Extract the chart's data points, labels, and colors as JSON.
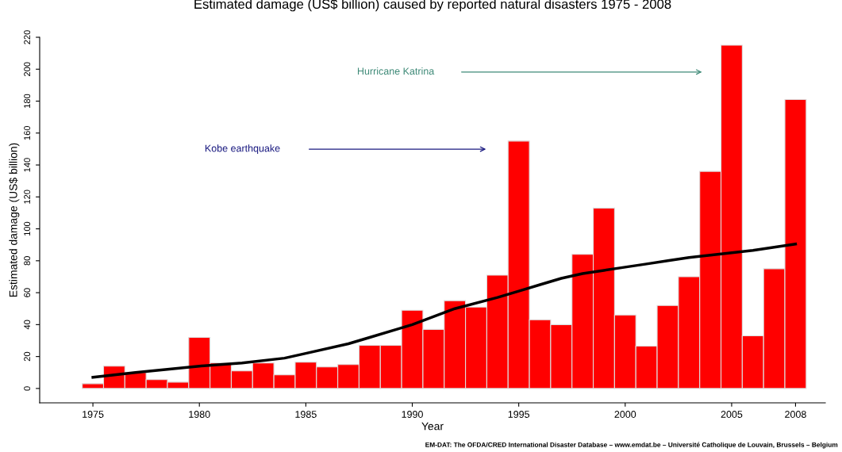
{
  "chart_data": {
    "type": "bar",
    "title": "Estimated damage (US$ billion) caused by reported natural disasters 1975 - 2008",
    "xlabel": "Year",
    "ylabel": "Estimated damage (US$ billion)",
    "x": [
      1975,
      1976,
      1977,
      1978,
      1979,
      1980,
      1981,
      1982,
      1983,
      1984,
      1985,
      1986,
      1987,
      1988,
      1989,
      1990,
      1991,
      1992,
      1993,
      1994,
      1995,
      1996,
      1997,
      1998,
      1999,
      2000,
      2001,
      2002,
      2003,
      2004,
      2005,
      2006,
      2007,
      2008
    ],
    "series": [
      {
        "color": "#ff0000",
        "values": [
          3,
          14,
          10,
          5.5,
          4,
          32,
          16,
          11,
          16,
          8.5,
          16.5,
          13.5,
          15,
          27,
          27,
          49,
          37,
          55,
          51,
          71,
          155,
          43,
          40,
          84,
          113,
          46,
          26.5,
          52,
          70,
          136,
          215,
          33,
          75,
          181
        ]
      },
      {
        "type": "line",
        "color": "#000000",
        "x": [
          1975,
          1977,
          1980,
          1982,
          1984,
          1985,
          1987,
          1988,
          1990,
          1992,
          1994,
          1995,
          1996,
          1997,
          1998,
          1999,
          2000,
          2001,
          2002,
          2003,
          2004,
          2005,
          2006,
          2007,
          2008
        ],
        "values": [
          7,
          10,
          14,
          16,
          19,
          22,
          28,
          32,
          40,
          50,
          57,
          61,
          65,
          69,
          72,
          74,
          76,
          78,
          80,
          82,
          83.5,
          85,
          86.5,
          88.5,
          90.5
        ]
      }
    ],
    "xlim": [
      1972.5,
      2009.4
    ],
    "xticks": [
      1975,
      1980,
      1985,
      1990,
      1995,
      2000,
      2005,
      2008
    ],
    "ylim": [
      -9,
      220
    ],
    "yticks": [
      0,
      20,
      40,
      60,
      80,
      100,
      120,
      140,
      160,
      180,
      200,
      220
    ],
    "grid": false,
    "legend": false,
    "annotations": [
      "Kobe earthquake",
      "Hurricane Katrina",
      "EM-DAT: The OFDA/CRED International Disaster Database – www.emdat.be – Université Catholique de Louvain, Brussels – Belgium"
    ]
  }
}
